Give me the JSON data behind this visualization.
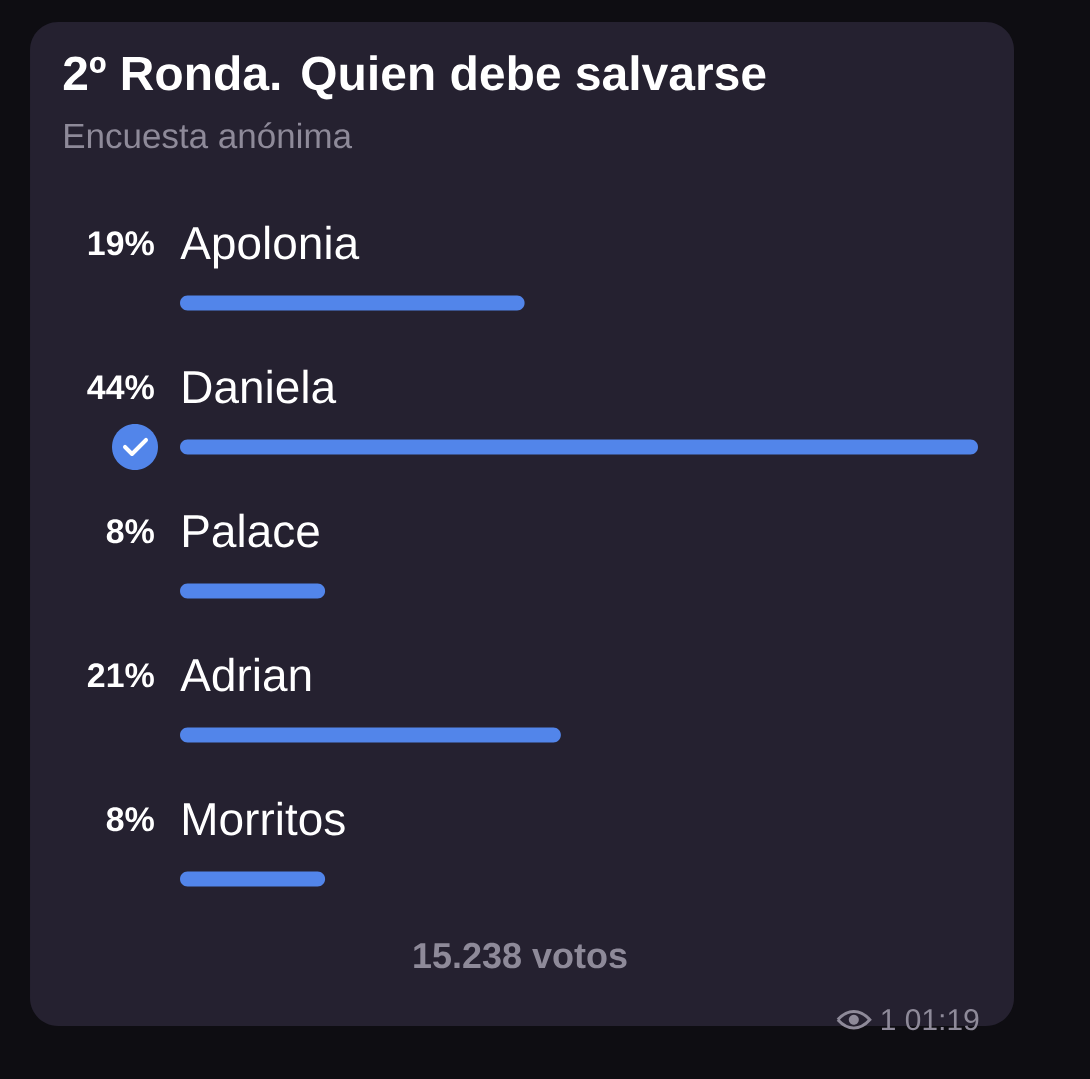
{
  "chart_data": {
    "type": "bar",
    "orientation": "horizontal",
    "title": "2º Ronda. Quien debe salvarse",
    "subtitle": "Encuesta anónima",
    "categories": [
      "Apolonia",
      "Daniela",
      "Palace",
      "Adrian",
      "Morritos"
    ],
    "values": [
      19,
      44,
      8,
      21,
      8
    ],
    "value_labels": [
      "19%",
      "44%",
      "8%",
      "21%",
      "8%"
    ],
    "color": "#5285ea",
    "annotations": [
      "15.238 votos",
      "1 01:19"
    ]
  }
}
